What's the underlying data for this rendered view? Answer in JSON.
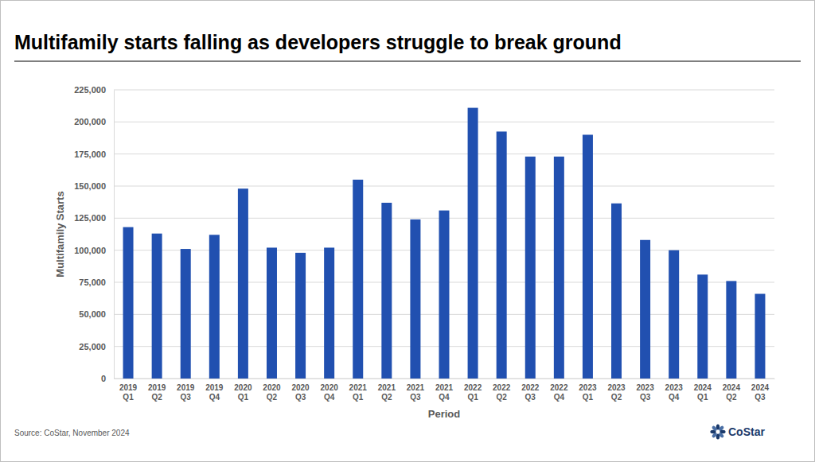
{
  "chart_data": {
    "type": "bar",
    "title": "Multifamily starts falling as developers struggle to break ground",
    "x_label": "Period",
    "y_label": "Multifamily Starts",
    "annotations": [
      "Source: CoStar, November 2024",
      "CoStar"
    ],
    "categories": [
      "2019 Q1",
      "2019 Q2",
      "2019 Q3",
      "2019 Q4",
      "2020 Q1",
      "2020 Q2",
      "2020 Q3",
      "2020 Q4",
      "2021 Q1",
      "2021 Q2",
      "2021 Q3",
      "2021 Q4",
      "2022 Q1",
      "2022 Q2",
      "2022 Q3",
      "2022 Q4",
      "2023 Q1",
      "2023 Q2",
      "2023 Q3",
      "2023 Q4",
      "2024 Q1",
      "2024 Q2",
      "2024 Q3"
    ],
    "values": [
      118000,
      113000,
      101000,
      112000,
      148000,
      102000,
      98000,
      102000,
      155000,
      137000,
      124000,
      131000,
      211000,
      192500,
      173000,
      173000,
      190000,
      136500,
      108000,
      100000,
      81000,
      76000,
      66000
    ],
    "color": "#2150b0",
    "ylim": [
      0,
      225000
    ],
    "yticks": [
      0,
      {
        "value": 25000,
        "label": "25,000"
      },
      {
        "value": 50000,
        "label": "50,000"
      },
      {
        "value": 75000,
        "label": "75,000"
      },
      {
        "value": 100000,
        "label": "100,000"
      },
      {
        "value": 125000,
        "label": "125,000"
      },
      {
        "value": 150000,
        "label": "150,000"
      },
      {
        "value": 175000,
        "label": "175,000"
      },
      {
        "value": 200000,
        "label": "200,000"
      },
      {
        "value": 225000,
        "label": "225,000"
      }
    ],
    "grid": true
  }
}
